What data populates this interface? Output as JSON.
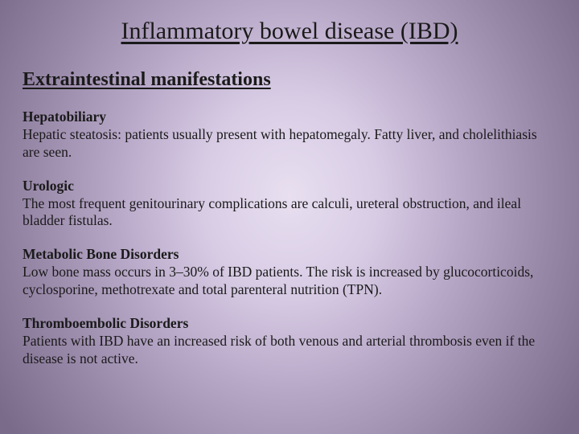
{
  "title": "Inflammatory bowel disease (IBD)",
  "subtitle": "Extraintestinal manifestations",
  "sections": [
    {
      "heading": "Hepatobiliary",
      "body": "Hepatic steatosis: patients usually present with hepatomegaly. Fatty liver, and cholelithiasis are seen."
    },
    {
      "heading": "Urologic",
      "body": "The most frequent genitourinary complications are calculi, ureteral obstruction, and ileal bladder fistulas."
    },
    {
      "heading": "Metabolic Bone Disorders",
      "body": "Low bone mass occurs in 3–30% of IBD patients. The risk is increased by glucocorticoids, cyclosporine, methotrexate and total parenteral nutrition (TPN)."
    },
    {
      "heading": "Thromboembolic Disorders",
      "body": "Patients with IBD have an increased risk of both venous and arterial thrombosis even if the disease is not active."
    }
  ],
  "style": {
    "background_gradient": {
      "type": "radial",
      "stops": [
        "#e8dff0",
        "#d8cce5",
        "#b8a8c8",
        "#9888a8",
        "#7a6b8a"
      ]
    },
    "text_color": "#1a1a1a",
    "title_fontsize": 30,
    "subtitle_fontsize": 24,
    "body_fontsize": 17.5,
    "font_family": "Times New Roman"
  }
}
